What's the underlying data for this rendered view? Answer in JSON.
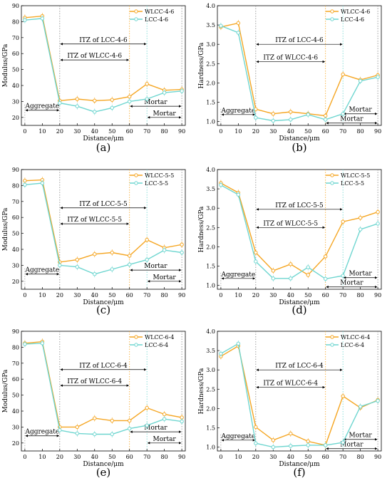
{
  "colors": {
    "wlcc": "#F5A623",
    "lcc": "#6FD6D0",
    "axis": "#000000",
    "grid": "#888888"
  },
  "chart_data": [
    {
      "type": "line",
      "panel_label": "(a)",
      "property": "modulus",
      "xlabel": "Distance/μm",
      "ylabel": "Modulus/GPa",
      "xlim": [
        -2,
        92
      ],
      "ylim": [
        15,
        90
      ],
      "xticks": [
        0,
        10,
        20,
        30,
        40,
        50,
        60,
        70,
        80,
        90
      ],
      "yticks": [
        20,
        30,
        40,
        50,
        60,
        70,
        80,
        90
      ],
      "x": [
        0,
        10,
        20,
        30,
        40,
        50,
        60,
        70,
        80,
        90
      ],
      "series": [
        {
          "name": "WLCC-4-6",
          "color_key": "wlcc",
          "values": [
            82.5,
            83.5,
            30.5,
            31.5,
            30.5,
            31,
            33,
            41,
            37,
            37.5
          ]
        },
        {
          "name": "LCC-4-6",
          "color_key": "lcc",
          "values": [
            81,
            82,
            29,
            27,
            23.5,
            26,
            30,
            31.5,
            35.5,
            36.5
          ]
        }
      ],
      "legend_position": "top-right",
      "vlines": [
        {
          "x": 20,
          "color_key": "grid"
        },
        {
          "x": 60,
          "color_key": "wlcc"
        },
        {
          "x": 70,
          "color_key": "lcc"
        },
        {
          "x": 90,
          "color_key": "grid"
        }
      ],
      "annotations": [
        {
          "text": "ITZ of LCC-4-6",
          "x1": 20,
          "x2": 70,
          "y": 66
        },
        {
          "text": "ITZ of WLCC-4-6",
          "x1": 20,
          "x2": 60,
          "y": 56
        },
        {
          "text": "Aggregate",
          "x1": 0,
          "x2": 20,
          "y": 24.5
        },
        {
          "text": "Mortar",
          "x1": 60,
          "x2": 90,
          "y": 27
        },
        {
          "text": "Mortar",
          "x1": 70,
          "x2": 90,
          "y": 20
        }
      ]
    },
    {
      "type": "line",
      "panel_label": "(b)",
      "property": "hardness",
      "xlabel": "Distance/μm",
      "ylabel": "Hardness/GPa",
      "xlim": [
        -2,
        92
      ],
      "ylim": [
        0.9,
        4.0
      ],
      "xticks": [
        0,
        10,
        20,
        30,
        40,
        50,
        60,
        70,
        80,
        90
      ],
      "yticks": [
        1.0,
        1.5,
        2.0,
        2.5,
        3.0,
        3.5,
        4.0
      ],
      "x": [
        0,
        10,
        20,
        30,
        40,
        50,
        60,
        70,
        80,
        90
      ],
      "series": [
        {
          "name": "WLCC-4-6",
          "color_key": "wlcc",
          "values": [
            3.45,
            3.55,
            1.32,
            1.2,
            1.25,
            1.2,
            1.15,
            2.22,
            2.08,
            2.2
          ]
        },
        {
          "name": "LCC-4-6",
          "color_key": "lcc",
          "values": [
            3.48,
            3.3,
            1.1,
            1.02,
            1.05,
            1.18,
            1.05,
            1.2,
            2.05,
            2.15
          ]
        }
      ],
      "legend_position": "top-right",
      "vlines": [
        {
          "x": 20,
          "color_key": "grid"
        },
        {
          "x": 60,
          "color_key": "wlcc"
        },
        {
          "x": 70,
          "color_key": "lcc"
        },
        {
          "x": 90,
          "color_key": "grid"
        }
      ],
      "annotations": [
        {
          "text": "ITZ of LCC-4-6",
          "x1": 20,
          "x2": 70,
          "y": 3.0
        },
        {
          "text": "ITZ of WLCC-4-6",
          "x1": 20,
          "x2": 60,
          "y": 2.55
        },
        {
          "text": "Aggregate",
          "x1": 0,
          "x2": 20,
          "y": 1.18
        },
        {
          "text": "Mortar",
          "x1": 70,
          "x2": 90,
          "y": 1.2
        },
        {
          "text": "Mortar",
          "x1": 60,
          "x2": 90,
          "y": 0.96
        }
      ]
    },
    {
      "type": "line",
      "panel_label": "(c)",
      "property": "modulus",
      "xlabel": "Distance/μm",
      "ylabel": "Modulus/GPa",
      "xlim": [
        -2,
        92
      ],
      "ylim": [
        15,
        90
      ],
      "xticks": [
        0,
        10,
        20,
        30,
        40,
        50,
        60,
        70,
        80,
        90
      ],
      "yticks": [
        20,
        30,
        40,
        50,
        60,
        70,
        80,
        90
      ],
      "x": [
        0,
        10,
        20,
        30,
        40,
        50,
        60,
        70,
        80,
        90
      ],
      "series": [
        {
          "name": "WLCC-5-5",
          "color_key": "wlcc",
          "values": [
            83,
            83.5,
            32,
            33.5,
            37,
            38,
            36,
            46,
            41,
            43
          ]
        },
        {
          "name": "LCC-5-5",
          "color_key": "lcc",
          "values": [
            80.5,
            81.5,
            30,
            29,
            24.5,
            27.5,
            30.5,
            33.5,
            39.5,
            38
          ]
        }
      ],
      "legend_position": "top-right",
      "vlines": [
        {
          "x": 20,
          "color_key": "grid"
        },
        {
          "x": 60,
          "color_key": "wlcc"
        },
        {
          "x": 70,
          "color_key": "lcc"
        },
        {
          "x": 90,
          "color_key": "grid"
        }
      ],
      "annotations": [
        {
          "text": "ITZ of LCC-5-5",
          "x1": 20,
          "x2": 70,
          "y": 66
        },
        {
          "text": "ITZ of WLCC-5-5",
          "x1": 20,
          "x2": 60,
          "y": 56
        },
        {
          "text": "Aggregate",
          "x1": 0,
          "x2": 20,
          "y": 24.5
        },
        {
          "text": "Mortar",
          "x1": 60,
          "x2": 90,
          "y": 27
        },
        {
          "text": "Mortar",
          "x1": 70,
          "x2": 90,
          "y": 20
        }
      ]
    },
    {
      "type": "line",
      "panel_label": "(d)",
      "property": "hardness",
      "xlabel": "Distance/μm",
      "ylabel": "Hardness/GPa",
      "xlim": [
        -2,
        92
      ],
      "ylim": [
        0.9,
        4.0
      ],
      "xticks": [
        0,
        10,
        20,
        30,
        40,
        50,
        60,
        70,
        80,
        90
      ],
      "yticks": [
        1.0,
        1.5,
        2.0,
        2.5,
        3.0,
        3.5,
        4.0
      ],
      "x": [
        0,
        10,
        20,
        30,
        40,
        50,
        60,
        70,
        80,
        90
      ],
      "series": [
        {
          "name": "WLCC-5-5",
          "color_key": "wlcc",
          "values": [
            3.65,
            3.4,
            1.85,
            1.38,
            1.55,
            1.27,
            1.75,
            2.65,
            2.75,
            2.9
          ]
        },
        {
          "name": "LCC-5-5",
          "color_key": "lcc",
          "values": [
            3.6,
            3.35,
            1.62,
            1.18,
            1.18,
            1.47,
            1.17,
            1.25,
            2.45,
            2.6
          ]
        }
      ],
      "legend_position": "top-right",
      "vlines": [
        {
          "x": 20,
          "color_key": "grid"
        },
        {
          "x": 60,
          "color_key": "wlcc"
        },
        {
          "x": 70,
          "color_key": "lcc"
        },
        {
          "x": 90,
          "color_key": "grid"
        }
      ],
      "annotations": [
        {
          "text": "ITZ of LCC-5-5",
          "x1": 20,
          "x2": 70,
          "y": 2.97
        },
        {
          "text": "ITZ of WLCC-5-5",
          "x1": 20,
          "x2": 60,
          "y": 2.5
        },
        {
          "text": "Aggregate",
          "x1": 0,
          "x2": 20,
          "y": 1.18
        },
        {
          "text": "Mortar",
          "x1": 70,
          "x2": 90,
          "y": 1.2
        },
        {
          "text": "Mortar",
          "x1": 60,
          "x2": 90,
          "y": 0.96
        }
      ]
    },
    {
      "type": "line",
      "panel_label": "(e)",
      "property": "modulus",
      "xlabel": "Distance/μm",
      "ylabel": "Modulus/GPa",
      "xlim": [
        -2,
        92
      ],
      "ylim": [
        15,
        90
      ],
      "xticks": [
        0,
        10,
        20,
        30,
        40,
        50,
        60,
        70,
        80,
        90
      ],
      "yticks": [
        20,
        30,
        40,
        50,
        60,
        70,
        80,
        90
      ],
      "x": [
        0,
        10,
        20,
        30,
        40,
        50,
        60,
        70,
        80,
        90
      ],
      "series": [
        {
          "name": "WLCC-6-4",
          "color_key": "wlcc",
          "values": [
            82.5,
            83.5,
            30,
            30,
            35.5,
            34,
            34,
            42,
            38,
            36
          ]
        },
        {
          "name": "LCC-6-4",
          "color_key": "lcc",
          "values": [
            82,
            82.5,
            28,
            26,
            25.5,
            25.5,
            29,
            31,
            35,
            33.5
          ]
        }
      ],
      "legend_position": "top-right",
      "vlines": [
        {
          "x": 20,
          "color_key": "grid"
        },
        {
          "x": 60,
          "color_key": "wlcc"
        },
        {
          "x": 70,
          "color_key": "lcc"
        },
        {
          "x": 90,
          "color_key": "grid"
        }
      ],
      "annotations": [
        {
          "text": "ITZ of LCC-6-4",
          "x1": 20,
          "x2": 70,
          "y": 66
        },
        {
          "text": "ITZ of WLCC-6-4",
          "x1": 20,
          "x2": 60,
          "y": 56
        },
        {
          "text": "Aggregate",
          "x1": 0,
          "x2": 20,
          "y": 24.5
        },
        {
          "text": "Mortar",
          "x1": 60,
          "x2": 90,
          "y": 27
        },
        {
          "text": "Mortar",
          "x1": 70,
          "x2": 90,
          "y": 20
        }
      ]
    },
    {
      "type": "line",
      "panel_label": "(f)",
      "property": "hardness",
      "xlabel": "Distance/μm",
      "ylabel": "Hardness/GPa",
      "xlim": [
        -2,
        92
      ],
      "ylim": [
        0.9,
        4.0
      ],
      "xticks": [
        0,
        10,
        20,
        30,
        40,
        50,
        60,
        70,
        80,
        90
      ],
      "yticks": [
        1.0,
        1.5,
        2.0,
        2.5,
        3.0,
        3.5,
        4.0
      ],
      "x": [
        0,
        10,
        20,
        30,
        40,
        50,
        60,
        70,
        80,
        90
      ],
      "series": [
        {
          "name": "WLCC-6-4",
          "color_key": "wlcc",
          "values": [
            3.35,
            3.62,
            1.52,
            1.18,
            1.35,
            1.15,
            1.05,
            2.32,
            2.02,
            2.22
          ]
        },
        {
          "name": "LCC-6-4",
          "color_key": "lcc",
          "values": [
            3.42,
            3.68,
            1.1,
            1.0,
            1.03,
            1.05,
            1.05,
            1.12,
            2.05,
            2.2
          ]
        }
      ],
      "legend_position": "top-right",
      "vlines": [
        {
          "x": 20,
          "color_key": "grid"
        },
        {
          "x": 60,
          "color_key": "wlcc"
        },
        {
          "x": 70,
          "color_key": "lcc"
        },
        {
          "x": 90,
          "color_key": "grid"
        }
      ],
      "annotations": [
        {
          "text": "ITZ of LCC-6-4",
          "x1": 20,
          "x2": 70,
          "y": 3.0
        },
        {
          "text": "ITZ of WLCC-6-4",
          "x1": 20,
          "x2": 60,
          "y": 2.55
        },
        {
          "text": "Aggregate",
          "x1": 0,
          "x2": 20,
          "y": 1.18
        },
        {
          "text": "Mortar",
          "x1": 70,
          "x2": 90,
          "y": 1.2
        },
        {
          "text": "Mortar",
          "x1": 60,
          "x2": 90,
          "y": 0.96
        }
      ]
    }
  ]
}
